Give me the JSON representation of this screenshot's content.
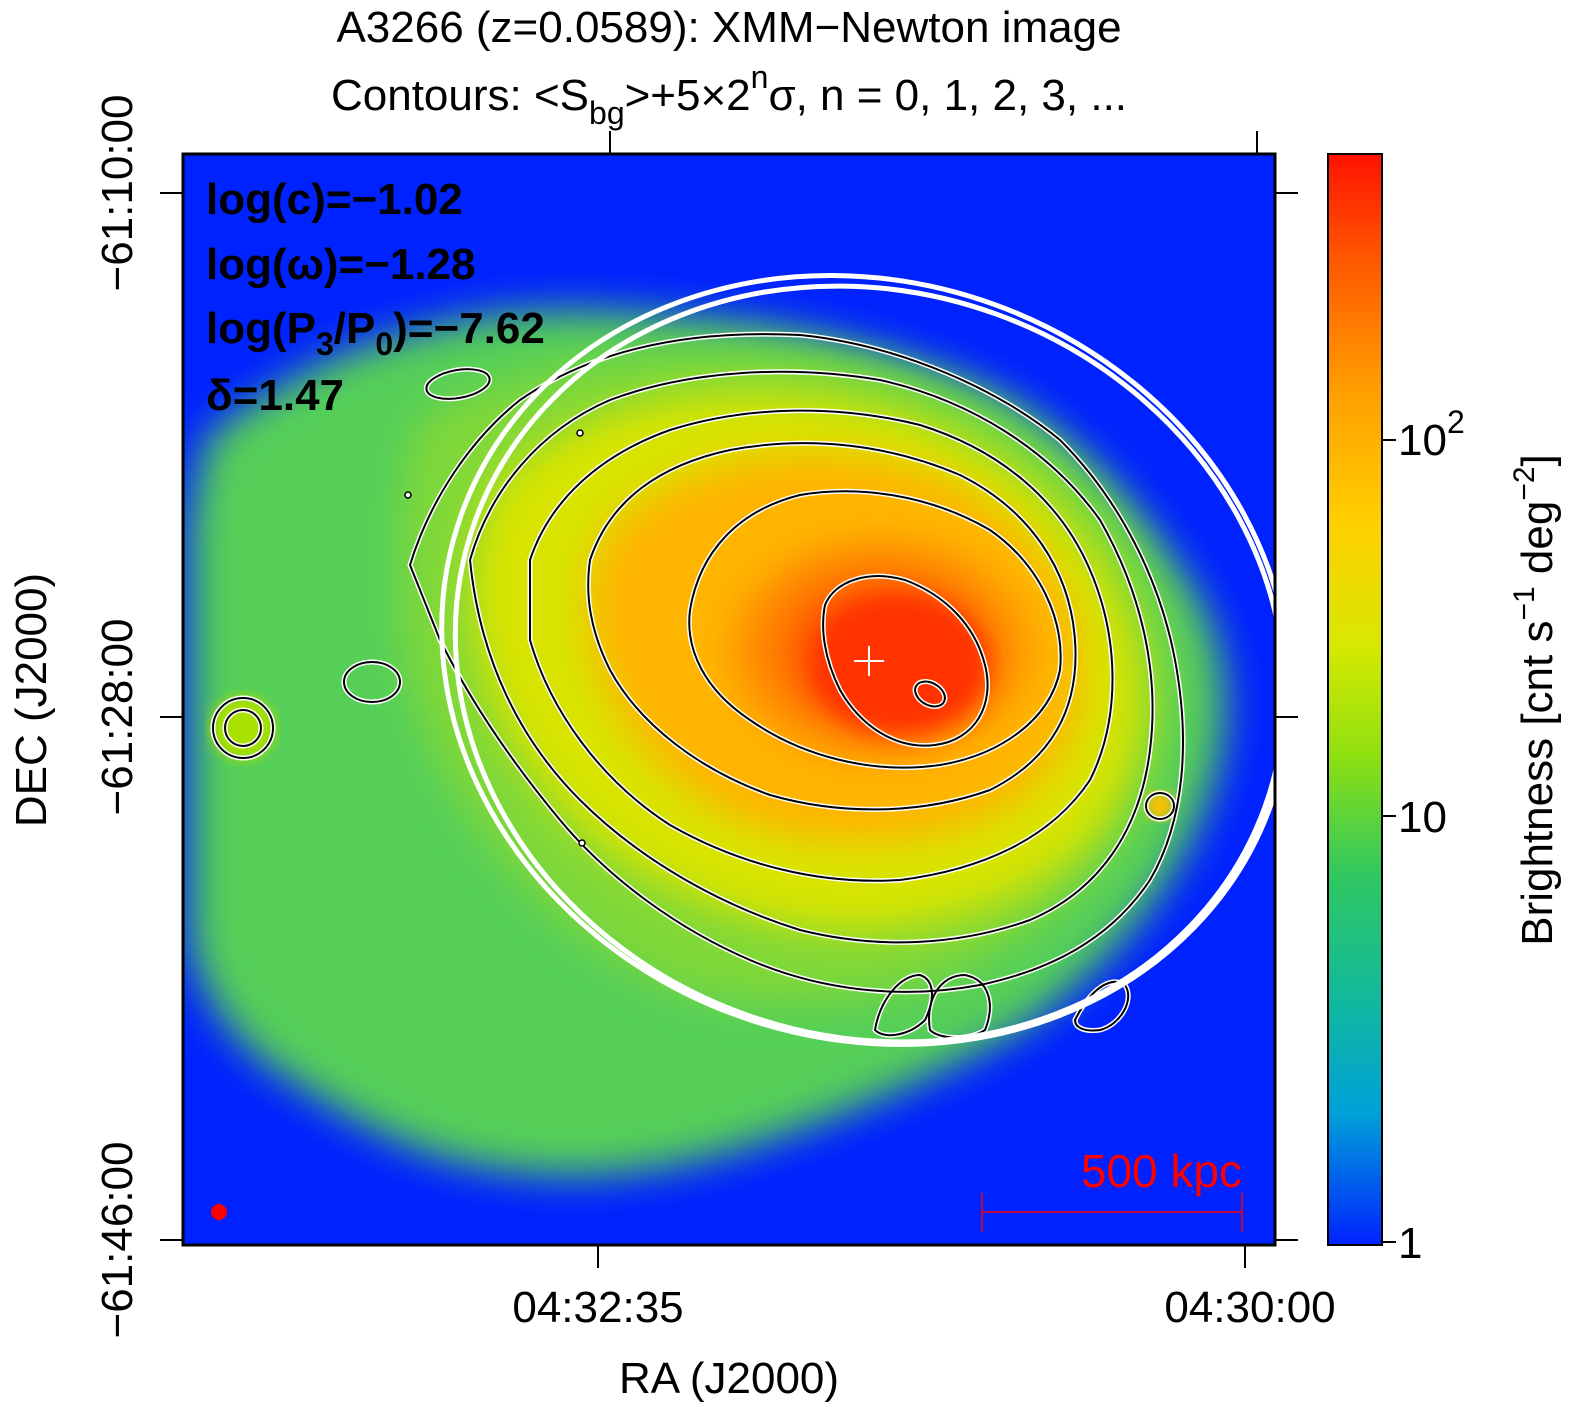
{
  "title": {
    "line1": "A3266 (z=0.0589): XMM−Newton image",
    "line2_prefix": "Contours: <S",
    "line2_sub": "bg",
    "line2_mid": ">+5×2",
    "line2_sup": "n",
    "line2_suffix": "σ, n = 0, 1, 2, 3, ..."
  },
  "axes": {
    "x_label": "RA (J2000)",
    "y_label": "DEC (J2000)",
    "x_ticks": [
      "04:32:35",
      "04:30:00"
    ],
    "y_ticks": [
      "−61:10:00",
      "−61:28:00",
      "−61:46:00"
    ]
  },
  "parameters": {
    "c": "log(c)=−1.02",
    "omega": "log(ω)=−1.28",
    "p3_prefix": "log(P",
    "p3_sub1": "3",
    "p3_mid": "/P",
    "p3_sub2": "0",
    "p3_suffix": ")=−7.62",
    "delta": "δ=1.47"
  },
  "scale_bar": {
    "label": "500 kpc"
  },
  "colorbar": {
    "label_prefix": "Brightness [cnt s",
    "label_sup1": "−1",
    "label_mid": " deg",
    "label_sup2": "−2",
    "label_suffix": "]",
    "ticks": [
      {
        "base": "10",
        "sup": "2"
      },
      {
        "base": "10",
        "sup": ""
      },
      {
        "base": "1",
        "sup": ""
      }
    ],
    "colors": [
      "#0022ff",
      "#00b0c8",
      "#20c080",
      "#40d050",
      "#a8e800",
      "#f0e000",
      "#ffa000",
      "#ff5000",
      "#ff1500"
    ]
  },
  "markers": {
    "beam_color": "#ff0000",
    "ellipse_color": "#ffffff",
    "center_cross_color": "#ffffff"
  }
}
